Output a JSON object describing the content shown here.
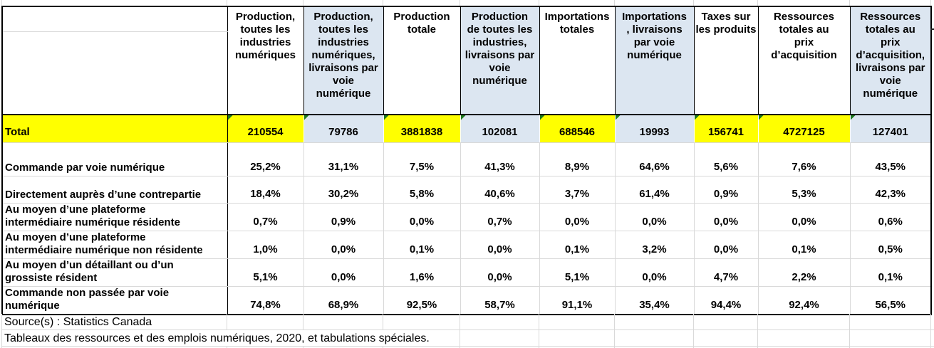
{
  "table": {
    "corner_cell_top": "",
    "corner_cell_bottom": "",
    "columns": [
      {
        "label": "Production, toutes les industries numériques",
        "lines": [
          "Production,",
          "toutes les",
          "industries",
          "numériques"
        ],
        "highlight": false
      },
      {
        "label": "Production, toutes les industries numériques, livraisons par voie numérique",
        "lines": [
          "Production,",
          "toutes les",
          "industries",
          "numériques,",
          "livraisons par",
          "voie",
          "numérique"
        ],
        "highlight": true
      },
      {
        "label": "Production totale",
        "lines": [
          "Production",
          "totale"
        ],
        "highlight": false
      },
      {
        "label": "Production de toutes les industries, livraisons par voie numérique",
        "lines": [
          "Production",
          "de toutes les",
          "industries,",
          "livraisons par",
          "voie",
          "numérique"
        ],
        "highlight": true
      },
      {
        "label": "Importations totales",
        "lines": [
          "Importations",
          "totales"
        ],
        "highlight": false
      },
      {
        "label": "Importations, livraisons par voie numérique",
        "lines": [
          "Importations",
          ", livraisons",
          "par voie",
          "numérique"
        ],
        "highlight": true
      },
      {
        "label": "Taxes sur les produits",
        "lines": [
          "Taxes sur",
          "les produits"
        ],
        "highlight": false
      },
      {
        "label": "Ressources totales au prix d’acquisition",
        "lines": [
          "Ressources",
          "totales au",
          "prix",
          "d’acquisition"
        ],
        "highlight": false
      },
      {
        "label": "Ressources totales au prix d’acquisition, livraisons par voie numérique",
        "lines": [
          "Ressources",
          "totales au",
          "prix",
          "d’acquisition,",
          "livraisons par",
          "voie",
          "numérique"
        ],
        "highlight": true
      }
    ],
    "total_row": {
      "label": "Total",
      "values": [
        "210554",
        "79786",
        "3881838",
        "102081",
        "688546",
        "19993",
        "156741",
        "4727125",
        "127401"
      ]
    },
    "rows": [
      {
        "label": "Commande par voie numérique",
        "lines": [
          "Commande par voie numérique"
        ],
        "values": [
          "25,2%",
          "31,1%",
          "7,5%",
          "41,3%",
          "8,9%",
          "64,6%",
          "5,6%",
          "7,6%",
          "43,5%"
        ]
      },
      {
        "label": "Directement auprès d’une contrepartie",
        "lines": [
          "Directement auprès d’une contrepartie"
        ],
        "values": [
          "18,4%",
          "30,2%",
          "5,8%",
          "40,6%",
          "3,7%",
          "61,4%",
          "0,9%",
          "5,3%",
          "42,3%"
        ]
      },
      {
        "label": "Au moyen d’une plateforme intermédiaire numérique résidente",
        "lines": [
          "Au moyen d’une plateforme",
          "intermédiaire numérique résidente"
        ],
        "values": [
          "0,7%",
          "0,9%",
          "0,0%",
          "0,7%",
          "0,0%",
          "0,0%",
          "0,0%",
          "0,0%",
          "0,6%"
        ]
      },
      {
        "label": "Au moyen d’une plateforme intermédiaire numérique non résidente",
        "lines": [
          "Au moyen d’une plateforme",
          "intermédiaire numérique non résidente"
        ],
        "values": [
          "1,0%",
          "0,0%",
          "0,1%",
          "0,0%",
          "0,1%",
          "3,2%",
          "0,0%",
          "0,1%",
          "0,5%"
        ]
      },
      {
        "label": "Au moyen d’un détaillant ou d’un grossiste résident",
        "lines": [
          "Au moyen d’un détaillant ou d’un",
          "grossiste résident"
        ],
        "values": [
          "5,1%",
          "0,0%",
          "1,6%",
          "0,0%",
          "5,1%",
          "0,0%",
          "4,7%",
          "2,2%",
          "0,1%"
        ]
      },
      {
        "label": "Commande non passée par voie numérique",
        "lines": [
          "Commande non passée par voie",
          "numérique"
        ],
        "values": [
          "74,8%",
          "68,9%",
          "92,5%",
          "58,7%",
          "91,1%",
          "35,4%",
          "94,4%",
          "92,4%",
          "56,5%"
        ]
      }
    ]
  },
  "footer": {
    "source_line": "Source(s) : Statistics Canada",
    "note_line": "Tableaux des ressources et des emplois numériques, 2020, et tabulations spéciales."
  },
  "colors": {
    "total_highlight": "#FFFF00",
    "column_highlight": "#DCE6F1",
    "error_indicator_green": "#1E7A1E",
    "gridline": "#D9D9D9",
    "border": "#000000"
  }
}
